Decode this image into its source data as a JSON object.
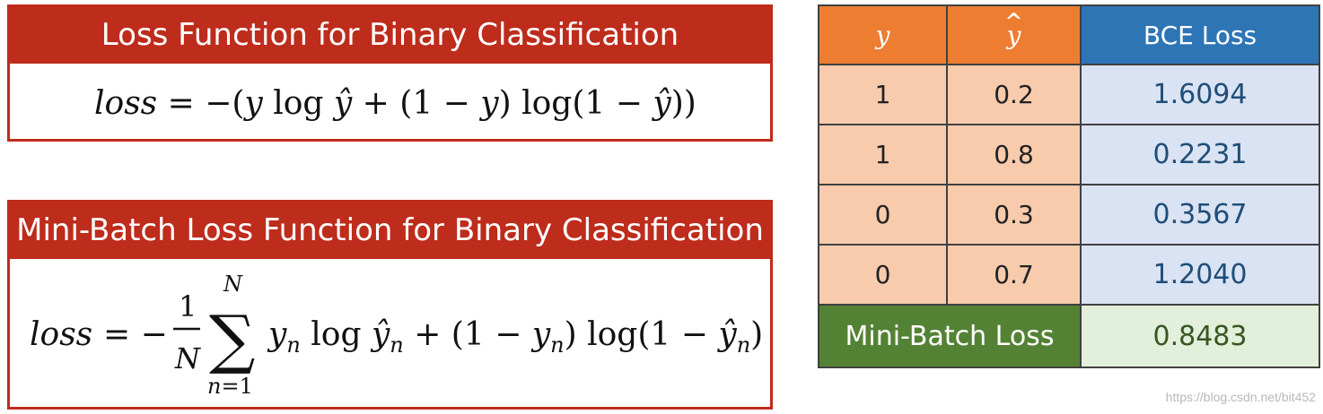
{
  "card1": {
    "title": "Loss Function for Binary Classification",
    "formula": "loss = −(y log ŷ + (1 − y) log(1 − ŷ))"
  },
  "card2": {
    "title": "Mini-Batch Loss Function for Binary Classification",
    "formula": "loss = −(1/N) Σ_{n=1}^{N} y_n log ŷ_n + (1 − y_n) log(1 − ŷ_n)"
  },
  "table": {
    "headers": {
      "y": "y",
      "y_hat": "y",
      "bce": "BCE Loss"
    },
    "rows": [
      {
        "y": "1",
        "y_hat": "0.2",
        "loss": "1.6094"
      },
      {
        "y": "1",
        "y_hat": "0.8",
        "loss": "0.2231"
      },
      {
        "y": "0",
        "y_hat": "0.3",
        "loss": "0.3567"
      },
      {
        "y": "0",
        "y_hat": "0.7",
        "loss": "1.2040"
      }
    ],
    "footer": {
      "label": "Mini-Batch Loss",
      "value": "0.8483"
    }
  },
  "watermark": "https://blog.csdn.net/bit452",
  "colors": {
    "card_red": "#be2c1c",
    "header_orange": "#ed7d31",
    "header_blue": "#2e75b6",
    "cell_peach": "#f8cbad",
    "cell_light_blue": "#dae3f3",
    "footer_green": "#548235",
    "footer_light_green": "#e2efda"
  }
}
